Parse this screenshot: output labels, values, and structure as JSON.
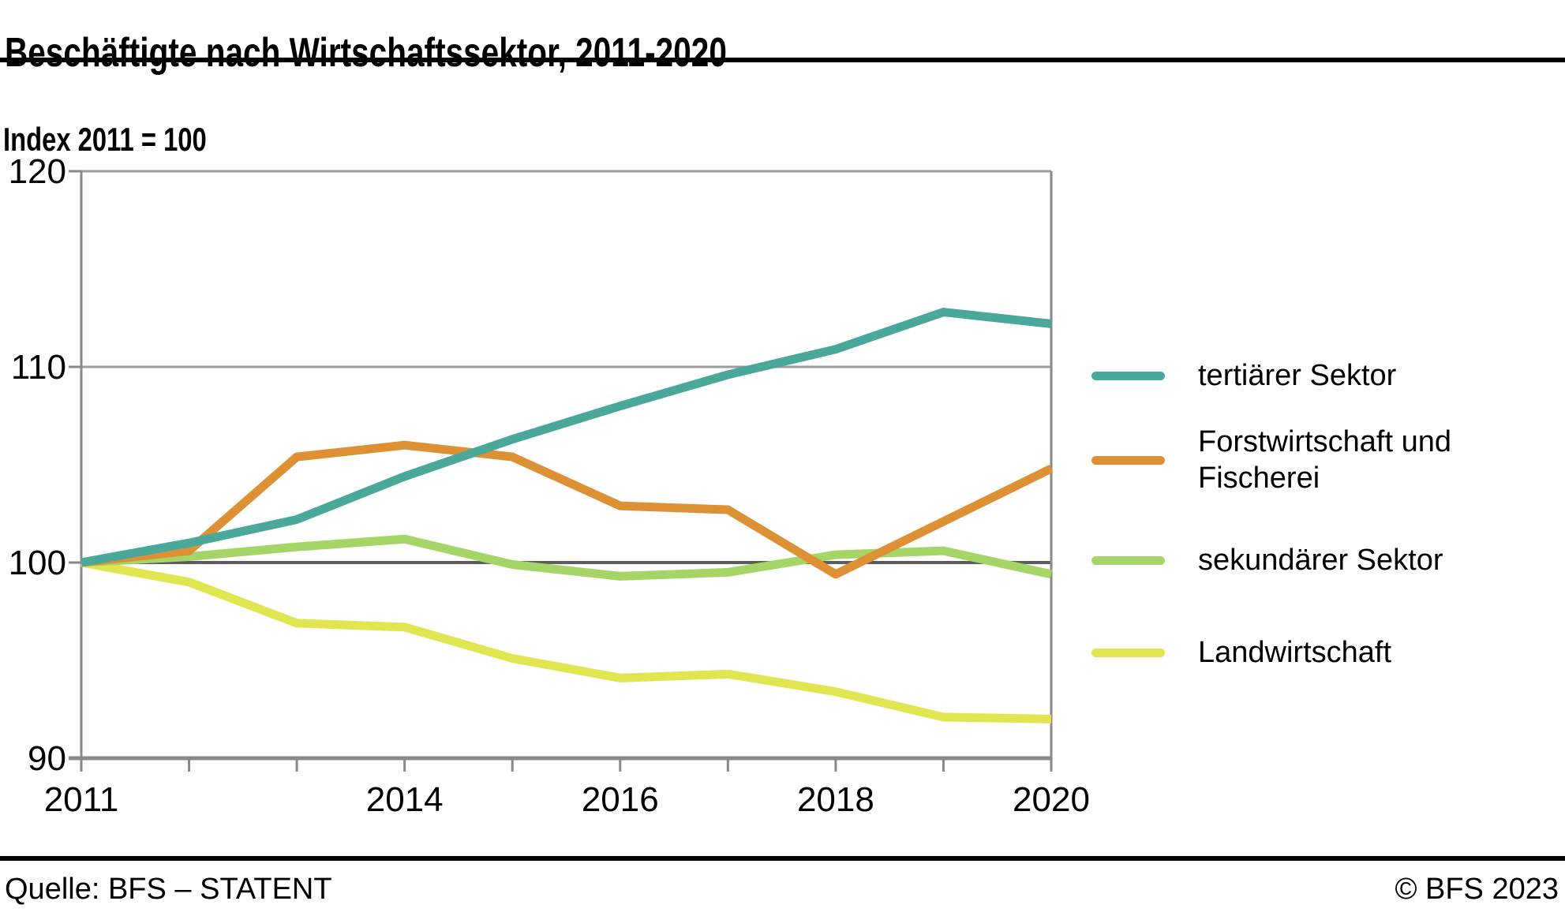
{
  "header": {
    "title": "Beschäftigte nach Wirtschaftssektor, 2011-2020",
    "subtitle": "Index 2011 = 100"
  },
  "footer": {
    "source": "Quelle: BFS – STATENT",
    "copyright": "© BFS 2023"
  },
  "colors": {
    "tertiary_teal": "#4AA89A",
    "forestry_orange": "#DD9134",
    "secondary_green": "#A6D567",
    "agriculture_yellow": "#DFE64F",
    "grid_light": "#9C9C9C",
    "grid_baseline": "#5C5C5C",
    "axis_gray": "#898989",
    "rule_black": "#000000"
  },
  "legend": {
    "position": "right",
    "items": [
      {
        "label": "tertiärer Sektor",
        "color": "#4AA89A"
      },
      {
        "label": "Forstwirtschaft und Fischerei",
        "color": "#DD9134"
      },
      {
        "label": "sekundärer Sektor",
        "color": "#A6D567"
      },
      {
        "label": "Landwirtschaft",
        "color": "#DFE64F"
      }
    ]
  },
  "chart_data": {
    "type": "line",
    "title": "Beschäftigte nach Wirtschaftssektor, 2011-2020",
    "subtitle": "Index 2011 = 100",
    "xlabel": "",
    "ylabel": "Index 2011 = 100",
    "x": [
      2011,
      2012,
      2013,
      2014,
      2015,
      2016,
      2017,
      2018,
      2019,
      2020
    ],
    "x_tick_labels_shown": [
      2011,
      2014,
      2016,
      2018,
      2020
    ],
    "ylim": [
      90,
      120
    ],
    "yticks": [
      90,
      100,
      110,
      120
    ],
    "baseline": 100,
    "grid": "horizontal",
    "legend_position": "right",
    "series": [
      {
        "name": "tertiärer Sektor",
        "color": "#4AA89A",
        "values": [
          100,
          101.0,
          102.2,
          104.4,
          106.3,
          108.0,
          109.6,
          110.9,
          112.8,
          112.2
        ]
      },
      {
        "name": "Forstwirtschaft und Fischerei",
        "color": "#DD9134",
        "values": [
          100,
          100.6,
          105.4,
          106.0,
          105.4,
          102.9,
          102.7,
          99.4,
          102.1,
          104.8
        ]
      },
      {
        "name": "sekundärer Sektor",
        "color": "#A6D567",
        "values": [
          100,
          100.3,
          100.8,
          101.2,
          99.9,
          99.3,
          99.5,
          100.4,
          100.6,
          99.4
        ]
      },
      {
        "name": "Landwirtschaft",
        "color": "#DFE64F",
        "values": [
          100,
          99.0,
          96.9,
          96.7,
          95.1,
          94.1,
          94.3,
          93.4,
          92.1,
          92.0
        ]
      }
    ]
  }
}
